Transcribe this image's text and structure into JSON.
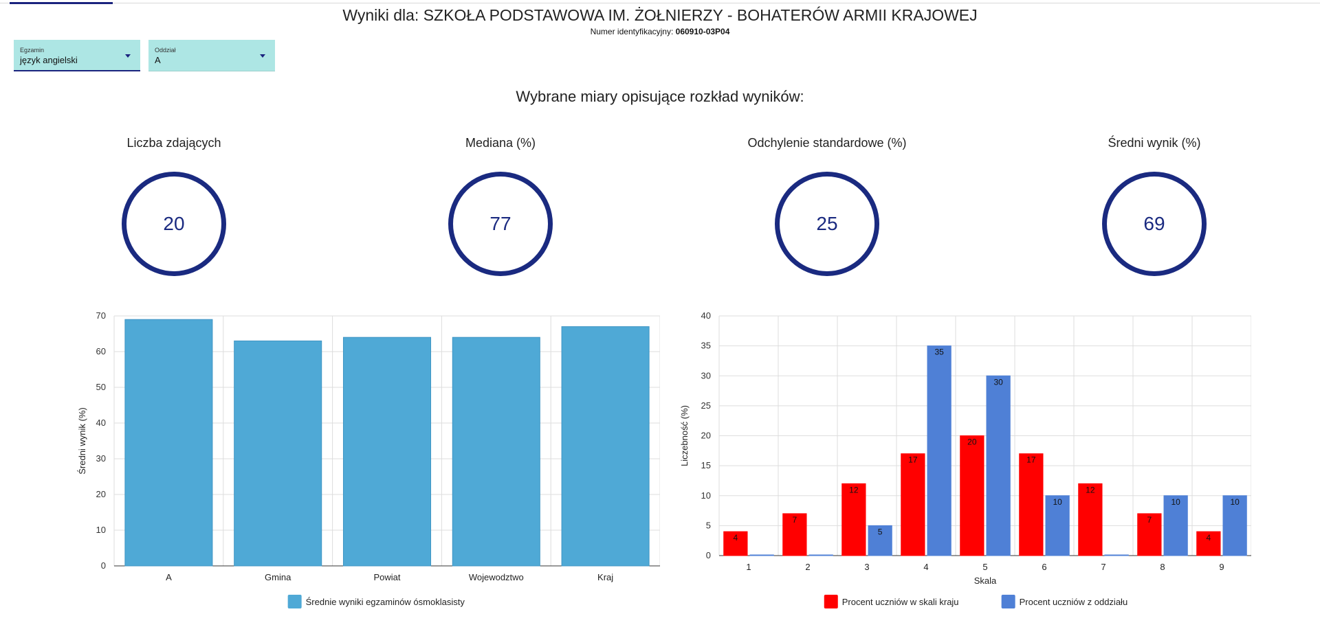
{
  "header": {
    "title": "Wyniki dla: SZKOŁA PODSTAWOWA IM. ŻOŁNIERZY - BOHATERÓW ARMII KRAJOWEJ",
    "id_label": "Numer identyfikacyjny:",
    "id_value": "060910-03P04"
  },
  "filters": {
    "exam": {
      "label": "Egzamin",
      "value": "język angielski"
    },
    "class": {
      "label": "Oddział",
      "value": "A"
    }
  },
  "section_title": "Wybrane miary opisujące rozkład wyników:",
  "stats": [
    {
      "name": "Liczba zdających",
      "value": "20"
    },
    {
      "name": "Mediana (%)",
      "value": "77"
    },
    {
      "name": "Odchylenie standardowe (%)",
      "value": "25"
    },
    {
      "name": "Średni wynik (%)",
      "value": "69"
    }
  ],
  "chart_data": [
    {
      "type": "bar",
      "categories": [
        "A",
        "Gmina",
        "Powiat",
        "Wojewodztwo",
        "Kraj"
      ],
      "series": [
        {
          "name": "Średnie wyniki egzaminów ósmoklasisty",
          "values": [
            69,
            63,
            64,
            64,
            67
          ],
          "color": "#4fa9d6"
        }
      ],
      "xlabel": "",
      "ylabel": "Średni wynik (%)",
      "ylim": [
        0,
        70
      ],
      "yticks": [
        0,
        10,
        20,
        30,
        40,
        50,
        60,
        70
      ],
      "grid": true,
      "legend": "bottom"
    },
    {
      "type": "bar",
      "categories": [
        "1",
        "2",
        "3",
        "4",
        "5",
        "6",
        "7",
        "8",
        "9"
      ],
      "series": [
        {
          "name": "Procent uczniów w skali kraju",
          "values": [
            4,
            7,
            12,
            17,
            20,
            17,
            12,
            7,
            4
          ],
          "color": "#ff0000"
        },
        {
          "name": "Procent uczniów z oddziału",
          "values": [
            0,
            0,
            5,
            35,
            30,
            10,
            0,
            10,
            10
          ],
          "color": "#4f80d6"
        }
      ],
      "xlabel": "Skala",
      "ylabel": "Liczebność (%)",
      "ylim": [
        0,
        40
      ],
      "yticks": [
        0,
        5,
        10,
        15,
        20,
        25,
        30,
        35,
        40
      ],
      "grid": true,
      "legend": "bottom",
      "data_labels": true
    }
  ]
}
